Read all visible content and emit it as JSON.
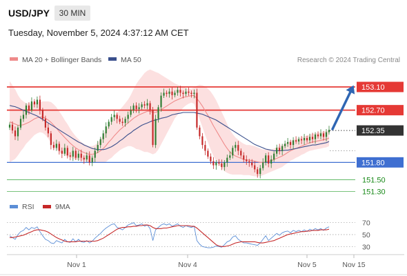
{
  "header": {
    "symbol": "USD/JPY",
    "timeframe": "30 MIN",
    "datetime": "Tuesday, November 5, 2024 4:37:12 AM CET"
  },
  "legend": {
    "ma20": "MA 20 + Bollinger Bands",
    "ma50": "MA 50",
    "credit": "Research © 2024 Trading Central"
  },
  "rsi_legend": {
    "rsi": "RSI",
    "ma": "9MA"
  },
  "colors": {
    "up": "#2e7d32",
    "down": "#c62828",
    "resistance": "#e53935",
    "support": "#3f6fd1",
    "green_level": "#4caf50",
    "ma20": "#ef8a8a",
    "ma50": "#3a4f8c",
    "band": "#fbd6d6",
    "arrow": "#2f66b3",
    "current": "#333333",
    "rsi": "#5b8ed6",
    "rsi_ma": "#c62828"
  },
  "chart_data": {
    "type": "candlestick",
    "x_ticks": [
      "Nov 1",
      "Nov 4",
      "Nov 5",
      "Nov 15"
    ],
    "price_range": [
      151.15,
      153.35
    ],
    "current_price": 152.35,
    "levels": [
      {
        "value": 153.1,
        "label": "153.10",
        "kind": "resistance"
      },
      {
        "value": 152.7,
        "label": "152.70",
        "kind": "resistance"
      },
      {
        "value": 152.35,
        "label": "152.35",
        "kind": "current"
      },
      {
        "value": 151.8,
        "label": "151.80",
        "kind": "support"
      },
      {
        "value": 151.5,
        "label": "151.50",
        "kind": "minor"
      },
      {
        "value": 151.3,
        "label": "151.30",
        "kind": "minor"
      }
    ],
    "arrow_target": 153.1,
    "close": [
      152.45,
      152.35,
      152.25,
      152.4,
      152.55,
      152.62,
      152.78,
      152.7,
      152.85,
      152.8,
      152.88,
      152.7,
      152.55,
      152.4,
      152.3,
      152.1,
      152.05,
      152.12,
      152.0,
      151.95,
      152.05,
      151.92,
      151.9,
      152.0,
      151.88,
      151.95,
      151.88,
      151.85,
      151.92,
      151.8,
      151.88,
      152.0,
      152.1,
      152.2,
      152.3,
      152.42,
      152.5,
      152.58,
      152.62,
      152.55,
      152.5,
      152.48,
      152.55,
      152.62,
      152.7,
      152.78,
      152.72,
      152.75,
      152.8,
      152.78,
      152.82,
      152.7,
      152.1,
      152.55,
      152.75,
      152.95,
      153.0,
      152.98,
      153.02,
      152.96,
      153.0,
      153.05,
      153.0,
      152.98,
      153.02,
      153.0,
      152.98,
      153.0,
      152.4,
      152.25,
      152.1,
      152.0,
      151.9,
      151.82,
      151.75,
      151.8,
      151.78,
      151.72,
      151.8,
      151.88,
      151.92,
      152.05,
      152.1,
      152.0,
      151.92,
      151.85,
      151.82,
      151.8,
      151.75,
      151.68,
      151.6,
      151.7,
      151.8,
      151.92,
      151.78,
      151.85,
      151.95,
      152.05,
      152.0,
      152.08,
      152.12,
      152.15,
      152.1,
      152.18,
      152.16,
      152.2,
      152.18,
      152.22,
      152.18,
      152.24,
      152.2,
      152.28,
      152.25,
      152.3,
      152.24,
      152.32,
      152.36
    ],
    "ma20": [
      152.5,
      152.48,
      152.46,
      152.44,
      152.44,
      152.45,
      152.47,
      152.49,
      152.52,
      152.55,
      152.57,
      152.58,
      152.58,
      152.56,
      152.53,
      152.49,
      152.44,
      152.39,
      152.33,
      152.28,
      152.23,
      152.18,
      152.13,
      152.09,
      152.05,
      152.02,
      151.99,
      151.97,
      151.95,
      151.94,
      151.94,
      151.95,
      151.97,
      152.0,
      152.04,
      152.09,
      152.15,
      152.2,
      152.26,
      152.31,
      152.36,
      152.4,
      152.44,
      152.48,
      152.52,
      152.56,
      152.59,
      152.62,
      152.64,
      152.66,
      152.68,
      152.68,
      152.66,
      152.66,
      152.68,
      152.71,
      152.74,
      152.77,
      152.8,
      152.83,
      152.86,
      152.88,
      152.9,
      152.92,
      152.93,
      152.94,
      152.95,
      152.95,
      152.9,
      152.84,
      152.77,
      152.69,
      152.61,
      152.52,
      152.43,
      152.35,
      152.27,
      152.19,
      152.11,
      152.04,
      151.98,
      151.94,
      151.91,
      151.89,
      151.87,
      151.85,
      151.84,
      151.84,
      151.83,
      151.82,
      151.81,
      151.8,
      151.8,
      151.81,
      151.82,
      151.83,
      151.85,
      151.87,
      151.89,
      151.91,
      151.94,
      151.97,
      152.0,
      152.02,
      152.04,
      152.06,
      152.08,
      152.1,
      152.12,
      152.14,
      152.15,
      152.16,
      152.17,
      152.18,
      152.19,
      152.2,
      152.22
    ],
    "ma50": [
      152.78,
      152.77,
      152.76,
      152.74,
      152.72,
      152.7,
      152.68,
      152.66,
      152.64,
      152.62,
      152.6,
      152.57,
      152.54,
      152.51,
      152.48,
      152.45,
      152.42,
      152.39,
      152.36,
      152.33,
      152.3,
      152.27,
      152.24,
      152.21,
      152.18,
      152.15,
      152.13,
      152.1,
      152.08,
      152.06,
      152.04,
      152.03,
      152.02,
      152.02,
      152.02,
      152.03,
      152.05,
      152.07,
      152.1,
      152.13,
      152.17,
      152.2,
      152.24,
      152.28,
      152.31,
      152.35,
      152.38,
      152.41,
      152.44,
      152.46,
      152.48,
      152.5,
      152.52,
      152.53,
      152.54,
      152.56,
      152.57,
      152.58,
      152.6,
      152.62,
      152.63,
      152.64,
      152.65,
      152.66,
      152.66,
      152.66,
      152.66,
      152.66,
      152.65,
      152.64,
      152.63,
      152.61,
      152.59,
      152.57,
      152.55,
      152.53,
      152.5,
      152.47,
      152.44,
      152.41,
      152.38,
      152.35,
      152.32,
      152.29,
      152.26,
      152.23,
      152.2,
      152.17,
      152.14,
      152.11,
      152.09,
      152.07,
      152.05,
      152.03,
      152.02,
      152.01,
      152.0,
      152.0,
      152.0,
      152.0,
      152.01,
      152.01,
      152.02,
      152.03,
      152.04,
      152.05,
      152.06,
      152.07,
      152.08,
      152.09,
      152.1,
      152.1,
      152.11,
      152.12,
      152.13,
      152.14,
      152.16
    ],
    "band_width": [
      0.7,
      0.65,
      0.6,
      0.52,
      0.45,
      0.4,
      0.35,
      0.32,
      0.3,
      0.28,
      0.27,
      0.26,
      0.27,
      0.29,
      0.32,
      0.35,
      0.36,
      0.36,
      0.35,
      0.33,
      0.3,
      0.28,
      0.25,
      0.22,
      0.2,
      0.18,
      0.16,
      0.15,
      0.14,
      0.14,
      0.14,
      0.15,
      0.17,
      0.2,
      0.24,
      0.28,
      0.3,
      0.32,
      0.33,
      0.34,
      0.35,
      0.36,
      0.38,
      0.4,
      0.44,
      0.5,
      0.56,
      0.6,
      0.64,
      0.68,
      0.7,
      0.72,
      0.72,
      0.7,
      0.66,
      0.6,
      0.54,
      0.48,
      0.42,
      0.36,
      0.3,
      0.26,
      0.22,
      0.18,
      0.15,
      0.13,
      0.12,
      0.14,
      0.22,
      0.3,
      0.36,
      0.42,
      0.46,
      0.5,
      0.52,
      0.52,
      0.5,
      0.48,
      0.46,
      0.42,
      0.38,
      0.35,
      0.32,
      0.3,
      0.28,
      0.27,
      0.26,
      0.26,
      0.26,
      0.26,
      0.25,
      0.24,
      0.22,
      0.21,
      0.2,
      0.19,
      0.19,
      0.19,
      0.19,
      0.19,
      0.18,
      0.18,
      0.17,
      0.17,
      0.16,
      0.16,
      0.15,
      0.15,
      0.14,
      0.14,
      0.14,
      0.14,
      0.14,
      0.14,
      0.14,
      0.14,
      0.14
    ],
    "rsi": {
      "ticks": [
        70,
        50,
        30
      ],
      "range": [
        20,
        80
      ],
      "values": [
        48,
        45,
        42,
        50,
        55,
        57,
        62,
        58,
        62,
        60,
        63,
        55,
        48,
        42,
        40,
        36,
        35,
        40,
        38,
        36,
        42,
        38,
        37,
        43,
        38,
        42,
        38,
        37,
        40,
        36,
        39,
        44,
        48,
        52,
        57,
        61,
        64,
        67,
        68,
        62,
        60,
        58,
        62,
        66,
        68,
        70,
        65,
        66,
        68,
        64,
        66,
        60,
        40,
        58,
        62,
        66,
        68,
        66,
        68,
        64,
        66,
        68,
        64,
        62,
        65,
        63,
        62,
        64,
        40,
        34,
        30,
        29,
        28,
        28,
        29,
        31,
        30,
        29,
        33,
        38,
        40,
        46,
        48,
        42,
        39,
        36,
        36,
        35,
        34,
        33,
        32,
        36,
        42,
        48,
        40,
        44,
        48,
        52,
        49,
        53,
        55,
        56,
        53,
        57,
        55,
        57,
        55,
        58,
        55,
        59,
        57,
        60,
        58,
        60,
        57,
        61,
        63
      ],
      "ma": [
        45,
        45,
        46,
        47,
        48,
        49,
        51,
        53,
        55,
        57,
        58,
        58,
        57,
        56,
        54,
        51,
        48,
        45,
        43,
        41,
        39,
        38,
        38,
        38,
        38,
        39,
        39,
        39,
        39,
        39,
        39,
        39,
        40,
        42,
        44,
        47,
        50,
        53,
        56,
        59,
        61,
        62,
        62,
        63,
        63,
        64,
        64,
        65,
        65,
        66,
        66,
        65,
        62,
        60,
        60,
        60,
        61,
        61,
        62,
        63,
        64,
        65,
        65,
        65,
        65,
        65,
        64,
        64,
        61,
        57,
        53,
        49,
        45,
        41,
        37,
        33,
        31,
        30,
        30,
        31,
        32,
        34,
        36,
        37,
        38,
        38,
        38,
        38,
        38,
        38,
        37,
        36,
        36,
        37,
        38,
        39,
        40,
        42,
        44,
        46,
        48,
        50,
        51,
        52,
        53,
        54,
        55,
        55,
        56,
        56,
        57,
        57,
        57,
        58,
        58,
        58,
        59
      ]
    }
  }
}
